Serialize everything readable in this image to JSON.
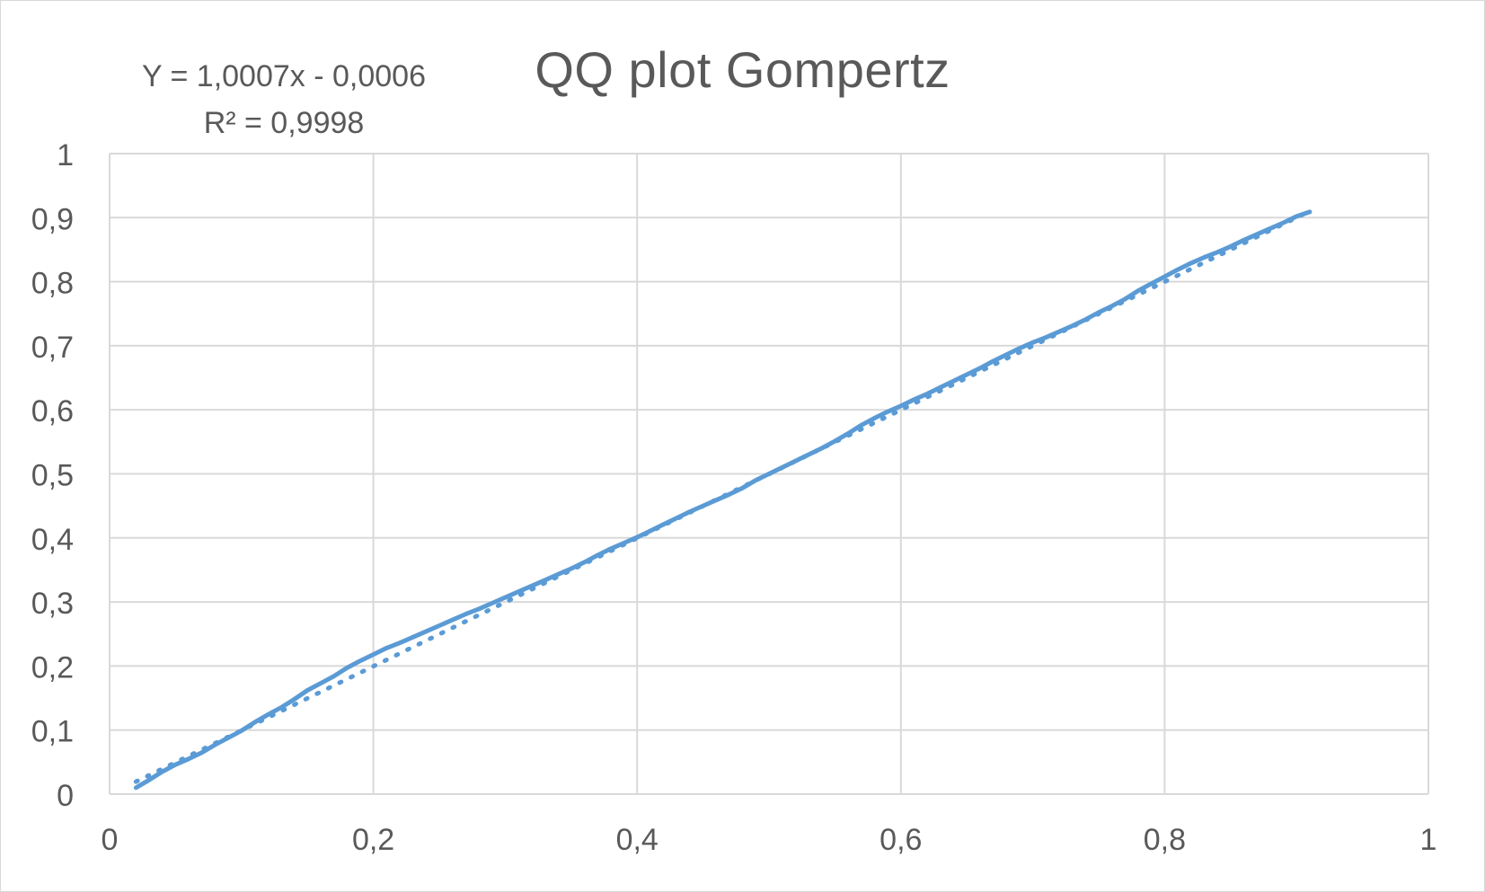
{
  "chart_data": {
    "type": "line",
    "title": "QQ plot Gompertz",
    "xlabel": "",
    "ylabel": "",
    "xlim": [
      0,
      1
    ],
    "ylim": [
      0,
      1
    ],
    "grid": true,
    "x_ticks": [
      "0",
      "0,2",
      "0,4",
      "0,6",
      "0,8",
      "1"
    ],
    "y_ticks": [
      "0",
      "0,1",
      "0,2",
      "0,3",
      "0,4",
      "0,5",
      "0,6",
      "0,7",
      "0,8",
      "0,9",
      "1"
    ],
    "x_tick_values": [
      0,
      0.2,
      0.4,
      0.6,
      0.8,
      1
    ],
    "y_tick_values": [
      0,
      0.1,
      0.2,
      0.3,
      0.4,
      0.5,
      0.6,
      0.7,
      0.8,
      0.9,
      1
    ],
    "trendline": {
      "equation": "Y = 1,0007x - 0,0006",
      "r_squared": "R² = 0,9998",
      "slope": 1.0007,
      "intercept": -0.0006,
      "x_range": [
        0.02,
        0.91
      ],
      "style": "dotted"
    },
    "series": [
      {
        "x": [
          0.02,
          0.03,
          0.04,
          0.05,
          0.06,
          0.07,
          0.08,
          0.09,
          0.1,
          0.11,
          0.12,
          0.13,
          0.14,
          0.15,
          0.16,
          0.17,
          0.18,
          0.19,
          0.2,
          0.21,
          0.22,
          0.23,
          0.24,
          0.25,
          0.26,
          0.27,
          0.28,
          0.29,
          0.3,
          0.31,
          0.32,
          0.33,
          0.34,
          0.35,
          0.36,
          0.37,
          0.38,
          0.39,
          0.4,
          0.41,
          0.42,
          0.43,
          0.44,
          0.45,
          0.46,
          0.47,
          0.48,
          0.49,
          0.5,
          0.51,
          0.52,
          0.53,
          0.54,
          0.55,
          0.56,
          0.57,
          0.58,
          0.59,
          0.6,
          0.61,
          0.62,
          0.63,
          0.64,
          0.65,
          0.66,
          0.67,
          0.68,
          0.69,
          0.7,
          0.71,
          0.72,
          0.73,
          0.74,
          0.75,
          0.76,
          0.77,
          0.78,
          0.79,
          0.8,
          0.81,
          0.82,
          0.83,
          0.84,
          0.85,
          0.86,
          0.87,
          0.88,
          0.89,
          0.9,
          0.91
        ],
        "y": [
          0.01,
          0.022,
          0.035,
          0.046,
          0.055,
          0.065,
          0.077,
          0.088,
          0.099,
          0.112,
          0.124,
          0.135,
          0.148,
          0.162,
          0.173,
          0.184,
          0.197,
          0.208,
          0.218,
          0.228,
          0.236,
          0.245,
          0.254,
          0.263,
          0.272,
          0.281,
          0.289,
          0.298,
          0.307,
          0.316,
          0.325,
          0.334,
          0.343,
          0.352,
          0.362,
          0.373,
          0.383,
          0.392,
          0.401,
          0.411,
          0.421,
          0.431,
          0.441,
          0.45,
          0.459,
          0.468,
          0.478,
          0.49,
          0.5,
          0.51,
          0.52,
          0.53,
          0.54,
          0.551,
          0.563,
          0.576,
          0.587,
          0.597,
          0.606,
          0.616,
          0.625,
          0.635,
          0.645,
          0.655,
          0.665,
          0.676,
          0.686,
          0.696,
          0.705,
          0.713,
          0.722,
          0.731,
          0.741,
          0.752,
          0.762,
          0.773,
          0.786,
          0.797,
          0.808,
          0.819,
          0.829,
          0.838,
          0.846,
          0.855,
          0.865,
          0.874,
          0.883,
          0.892,
          0.902,
          0.909
        ]
      }
    ],
    "colors": {
      "series": "#5b9bd5",
      "grid": "#d9d9d9",
      "text": "#595959"
    }
  }
}
